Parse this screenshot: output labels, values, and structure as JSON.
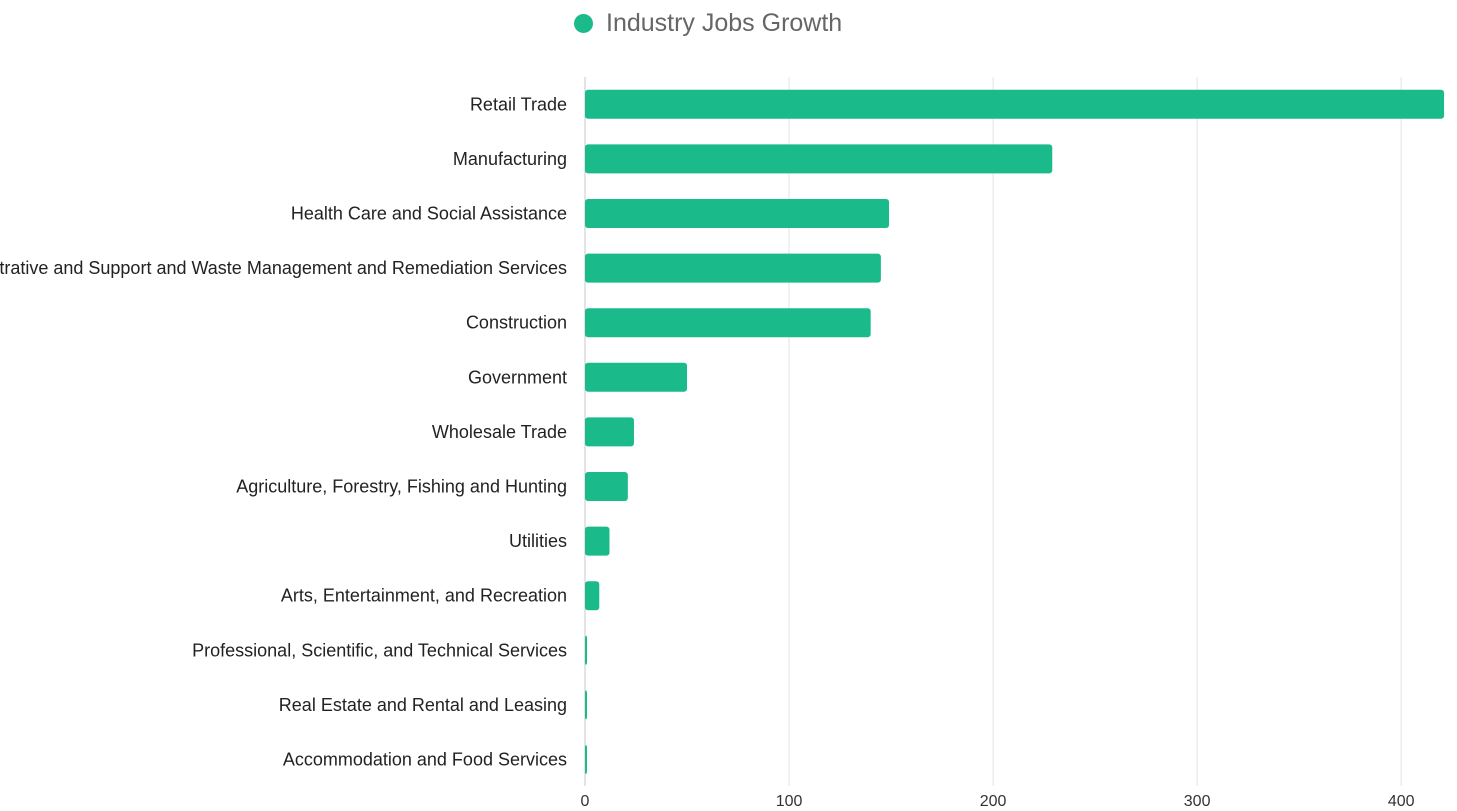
{
  "legend": {
    "label": "Industry Jobs Growth",
    "color": "#1aba8b"
  },
  "chart_data": {
    "type": "bar",
    "orientation": "horizontal",
    "title": "",
    "xlabel": "",
    "ylabel": "",
    "xlim": [
      0,
      420
    ],
    "x_ticks": [
      "0",
      "100",
      "200",
      "300",
      "400"
    ],
    "grid": true,
    "legend_position": "top",
    "categories": [
      "Retail Trade",
      "Manufacturing",
      "Health Care and Social Assistance",
      "Administrative and Support and Waste Management and Remediation Services",
      "Construction",
      "Government",
      "Wholesale Trade",
      "Agriculture, Forestry, Fishing and Hunting",
      "Utilities",
      "Arts, Entertainment, and Recreation",
      "Professional, Scientific, and Technical Services",
      "Real Estate and Rental and Leasing",
      "Accommodation and Food Services"
    ],
    "series": [
      {
        "name": "Industry Jobs Growth",
        "color": "#1aba8b",
        "values": [
          421,
          229,
          149,
          145,
          140,
          50,
          24,
          21,
          12,
          7,
          1,
          0.5,
          0.5
        ]
      }
    ]
  }
}
